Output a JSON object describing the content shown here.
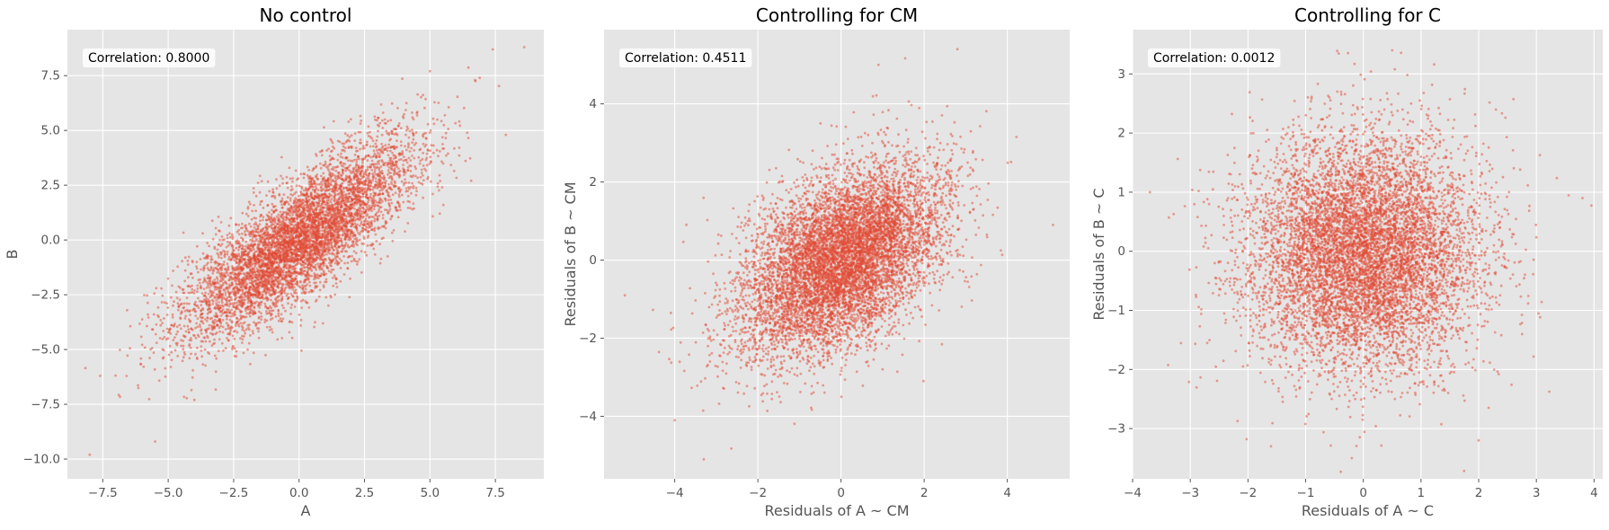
{
  "chart_data": [
    {
      "type": "scatter",
      "title": "No control",
      "xlabel": "A",
      "ylabel": "B",
      "xlim": [
        -8.85,
        9.35
      ],
      "ylim": [
        -10.9,
        9.6
      ],
      "xticks": [
        -7.5,
        -5.0,
        -2.5,
        0.0,
        2.5,
        5.0,
        7.5
      ],
      "xtick_labels": [
        "−7.5",
        "−5.0",
        "−2.5",
        "0.0",
        "2.5",
        "5.0",
        "7.5"
      ],
      "yticks": [
        -10.0,
        -7.5,
        -5.0,
        -2.5,
        0.0,
        2.5,
        5.0,
        7.5
      ],
      "ytick_labels": [
        "−10.0",
        "−7.5",
        "−5.0",
        "−2.5",
        "0.0",
        "2.5",
        "5.0",
        "7.5"
      ],
      "grid": true,
      "annotation": "Correlation: 0.8000",
      "point_color": "#E24A33",
      "n_points": 6000,
      "distribution": {
        "mean_x": 0.0,
        "mean_y": 0.0,
        "sd_x": 2.2,
        "sd_y": 2.2,
        "correlation": 0.8
      },
      "sample_points": [
        [
          -8.0,
          -9.8
        ],
        [
          -7.6,
          -6.2
        ],
        [
          -5.5,
          -9.2
        ],
        [
          7.4,
          8.7
        ],
        [
          8.6,
          8.8
        ],
        [
          7.9,
          4.8
        ],
        [
          5.0,
          7.7
        ],
        [
          -4.0,
          -7.3
        ]
      ]
    },
    {
      "type": "scatter",
      "title": "Controlling for CM",
      "xlabel": "Residuals of A ~ CM",
      "ylabel": "Residuals of B ~ CM",
      "xlim": [
        -5.7,
        5.5
      ],
      "ylim": [
        -5.6,
        5.9
      ],
      "xticks": [
        -4,
        -2,
        0,
        2,
        4
      ],
      "xtick_labels": [
        "−4",
        "−2",
        "0",
        "2",
        "4"
      ],
      "yticks": [
        -4,
        -2,
        0,
        2,
        4
      ],
      "ytick_labels": [
        "−4",
        "−2",
        "0",
        "2",
        "4"
      ],
      "grid": true,
      "annotation": "Correlation: 0.4511",
      "point_color": "#E24A33",
      "n_points": 8000,
      "distribution": {
        "mean_x": 0.0,
        "mean_y": 0.0,
        "sd_x": 1.2,
        "sd_y": 1.2,
        "correlation": 0.4511
      },
      "sample_points": [
        [
          -5.2,
          -0.9
        ],
        [
          5.1,
          0.9
        ],
        [
          2.8,
          5.4
        ],
        [
          -3.3,
          -5.1
        ],
        [
          0.9,
          5.0
        ],
        [
          -4.0,
          -4.1
        ]
      ]
    },
    {
      "type": "scatter",
      "title": "Controlling for C",
      "xlabel": "Residuals of A ~ C",
      "ylabel": "Residuals of B ~ C",
      "xlim": [
        -4.0,
        4.15
      ],
      "ylim": [
        -3.85,
        3.75
      ],
      "xticks": [
        -4,
        -3,
        -2,
        -1,
        0,
        1,
        2,
        3,
        4
      ],
      "xtick_labels": [
        "−4",
        "−3",
        "−2",
        "−1",
        "0",
        "1",
        "2",
        "3",
        "4"
      ],
      "yticks": [
        -3,
        -2,
        -1,
        0,
        1,
        2,
        3
      ],
      "ytick_labels": [
        "−3",
        "−2",
        "−1",
        "0",
        "1",
        "2",
        "3"
      ],
      "grid": true,
      "annotation": "Correlation: 0.0012",
      "point_color": "#E24A33",
      "n_points": 8000,
      "distribution": {
        "mean_x": 0.0,
        "mean_y": 0.0,
        "sd_x": 1.0,
        "sd_y": 1.0,
        "correlation": 0.0012
      },
      "sample_points": [
        [
          -3.7,
          1.0
        ],
        [
          3.8,
          0.9
        ],
        [
          -0.2,
          -3.5
        ],
        [
          0.5,
          3.4
        ],
        [
          -1.6,
          -3.3
        ],
        [
          2.0,
          -3.2
        ]
      ]
    }
  ]
}
